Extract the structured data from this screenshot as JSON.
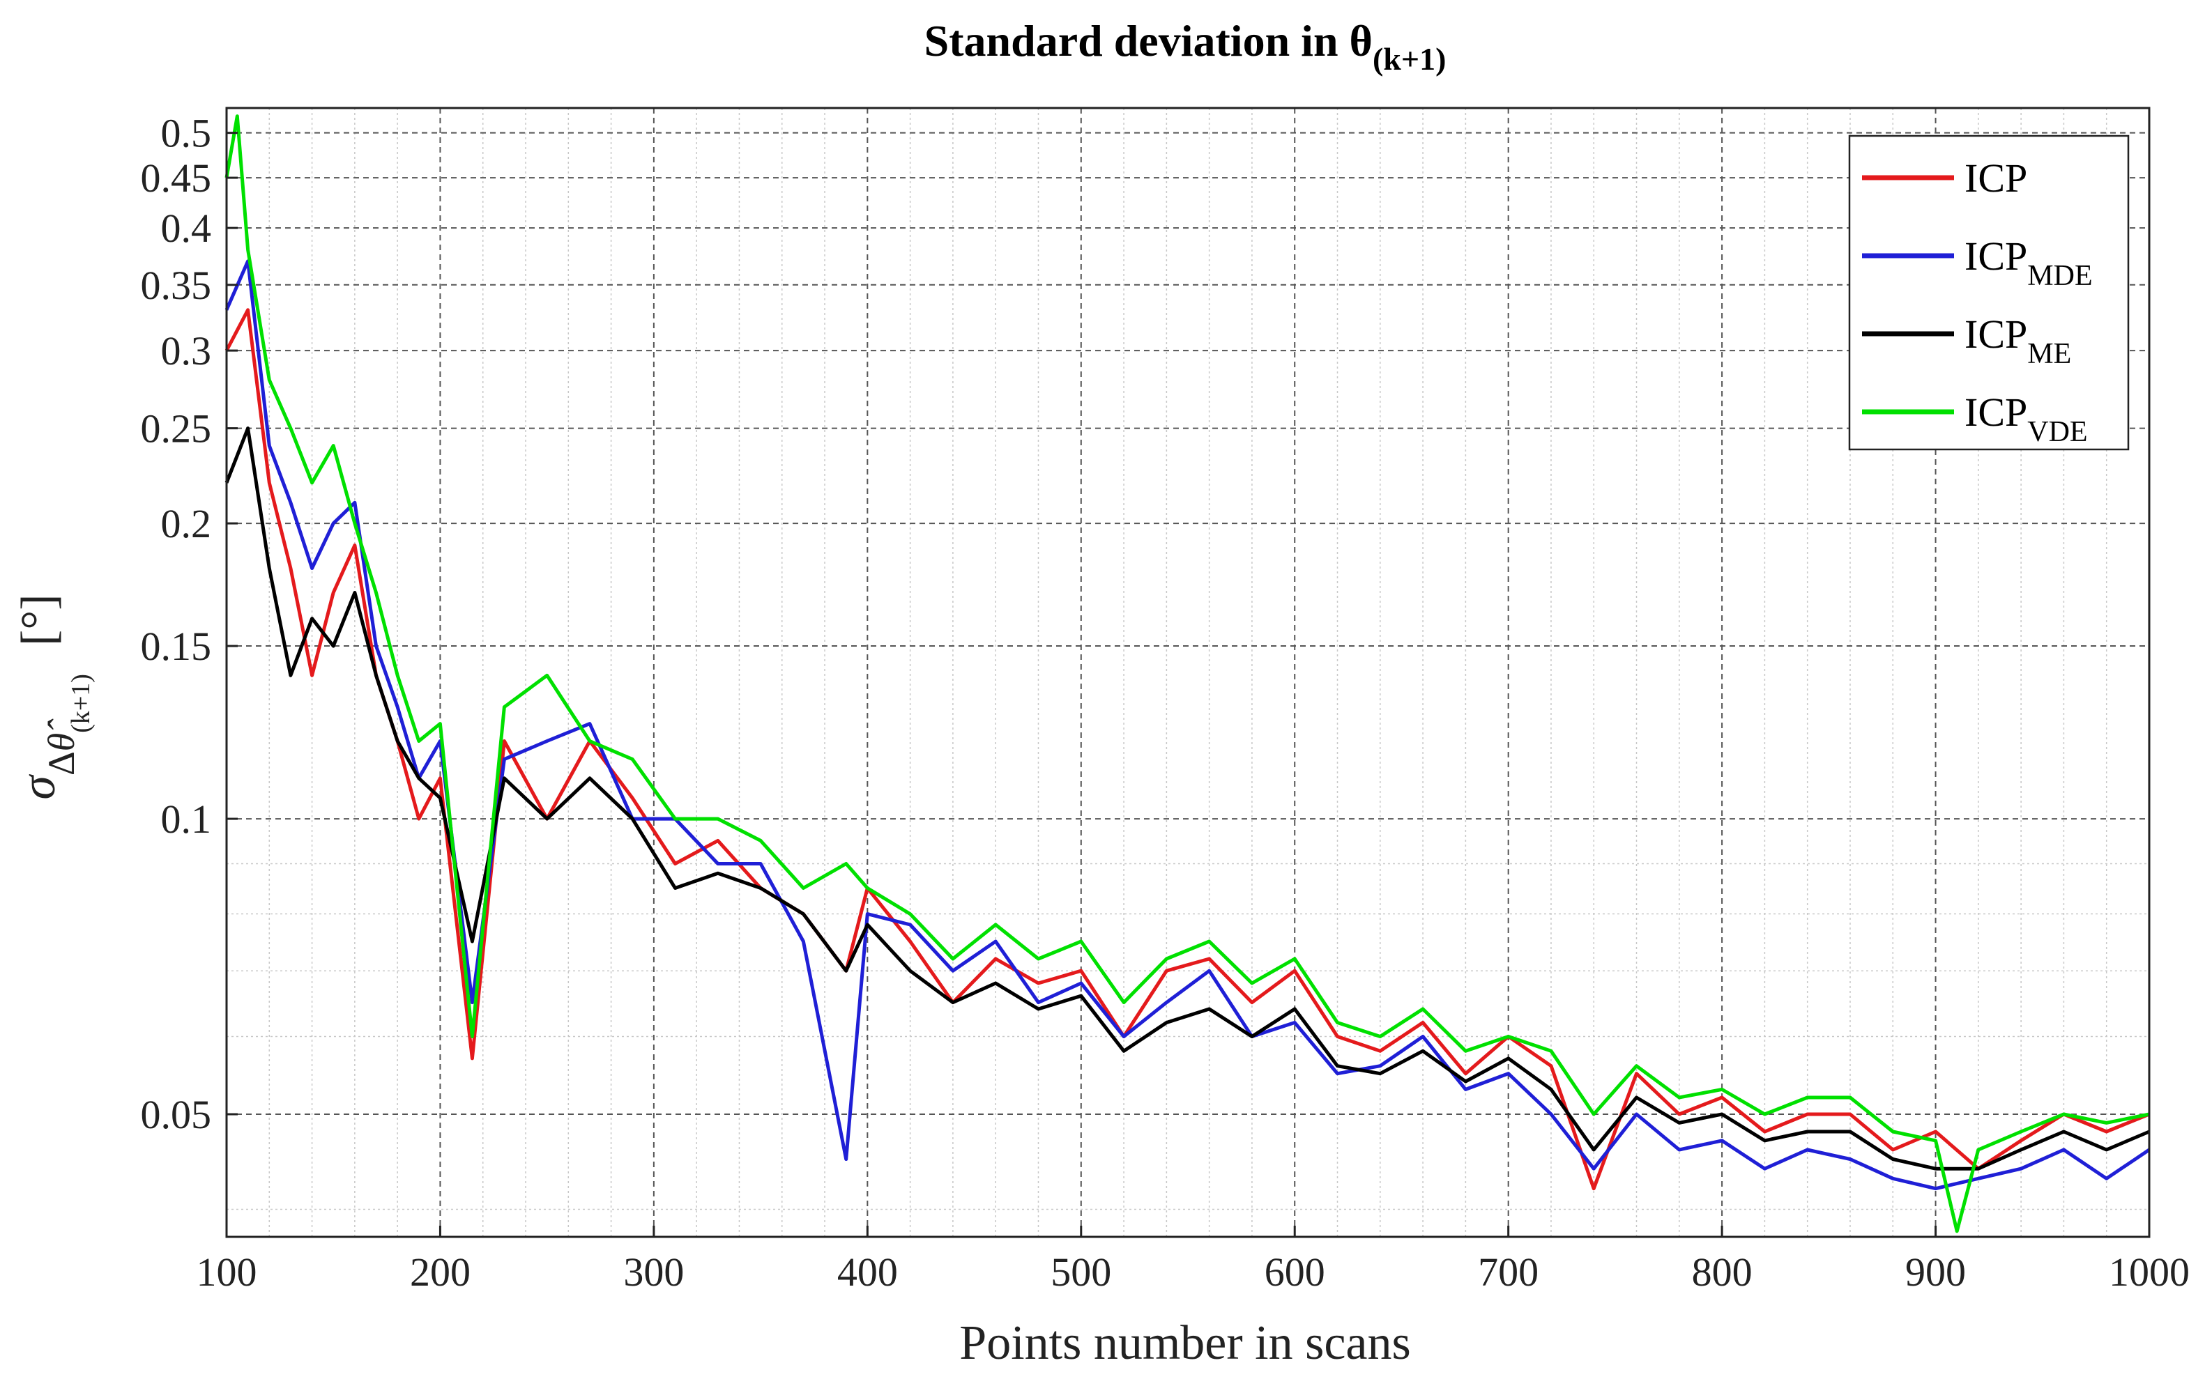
{
  "chart_data": {
    "type": "line",
    "title": "Standard deviation in θ",
    "title_subscript": "(k+1)",
    "xlabel": "Points number in scans",
    "ylabel_symbol": "σ",
    "ylabel_sub_delta": "Δ",
    "ylabel_sub_theta": "θ̂",
    "ylabel_sub_index": "(k+1)",
    "ylabel_unit": "[°]",
    "x_scale": "linear",
    "y_scale": "log",
    "xlim": [
      100,
      1000
    ],
    "ylim": [
      0.0375,
      0.53
    ],
    "xticks": [
      100,
      200,
      300,
      400,
      500,
      600,
      700,
      800,
      900,
      1000
    ],
    "xtick_labels": [
      "100",
      "200",
      "300",
      "400",
      "500",
      "600",
      "700",
      "800",
      "900",
      "1000"
    ],
    "yticks": [
      0.05,
      0.1,
      0.15,
      0.2,
      0.25,
      0.3,
      0.35,
      0.4,
      0.45,
      0.5
    ],
    "ytick_labels": [
      "0.05",
      "0.1",
      "0.15",
      "0.2",
      "0.25",
      "0.3",
      "0.35",
      "0.4",
      "0.45",
      "0.5"
    ],
    "grid": true,
    "minor_grid": true,
    "legend_position": "top-right",
    "series": [
      {
        "name": "ICP",
        "name_sub": "",
        "color": "#e41a1c",
        "x": [
          100,
          110,
          120,
          130,
          140,
          150,
          160,
          170,
          180,
          190,
          200,
          215,
          230,
          250,
          270,
          290,
          310,
          330,
          350,
          370,
          390,
          400,
          420,
          440,
          460,
          480,
          500,
          520,
          540,
          560,
          580,
          600,
          620,
          640,
          660,
          680,
          700,
          720,
          740,
          760,
          780,
          800,
          820,
          840,
          860,
          880,
          900,
          920,
          940,
          960,
          980,
          1000
        ],
        "values": [
          0.3,
          0.33,
          0.22,
          0.18,
          0.14,
          0.17,
          0.19,
          0.14,
          0.12,
          0.1,
          0.11,
          0.057,
          0.12,
          0.1,
          0.12,
          0.105,
          0.09,
          0.095,
          0.085,
          0.08,
          0.07,
          0.085,
          0.075,
          0.065,
          0.072,
          0.068,
          0.07,
          0.06,
          0.07,
          0.072,
          0.065,
          0.07,
          0.06,
          0.058,
          0.062,
          0.055,
          0.06,
          0.056,
          0.042,
          0.055,
          0.05,
          0.052,
          0.048,
          0.05,
          0.05,
          0.046,
          0.048,
          0.044,
          0.047,
          0.05,
          0.048,
          0.05
        ]
      },
      {
        "name": "ICP",
        "name_sub": "MDE",
        "color": "#1f1fd6",
        "x": [
          100,
          110,
          120,
          130,
          140,
          150,
          160,
          170,
          180,
          190,
          200,
          215,
          230,
          250,
          270,
          290,
          310,
          330,
          350,
          370,
          390,
          400,
          420,
          440,
          460,
          480,
          500,
          520,
          540,
          560,
          580,
          600,
          620,
          640,
          660,
          680,
          700,
          720,
          740,
          760,
          780,
          800,
          820,
          840,
          860,
          880,
          900,
          920,
          940,
          960,
          980,
          1000
        ],
        "values": [
          0.33,
          0.37,
          0.24,
          0.21,
          0.18,
          0.2,
          0.21,
          0.15,
          0.13,
          0.11,
          0.12,
          0.065,
          0.115,
          0.12,
          0.125,
          0.1,
          0.1,
          0.09,
          0.09,
          0.075,
          0.045,
          0.08,
          0.078,
          0.07,
          0.075,
          0.065,
          0.068,
          0.06,
          0.065,
          0.07,
          0.06,
          0.062,
          0.055,
          0.056,
          0.06,
          0.053,
          0.055,
          0.05,
          0.044,
          0.05,
          0.046,
          0.047,
          0.044,
          0.046,
          0.045,
          0.043,
          0.042,
          0.043,
          0.044,
          0.046,
          0.043,
          0.046
        ]
      },
      {
        "name": "ICP",
        "name_sub": "ME",
        "color": "#000000",
        "x": [
          100,
          110,
          120,
          130,
          140,
          150,
          160,
          170,
          180,
          190,
          200,
          215,
          230,
          250,
          270,
          290,
          310,
          330,
          350,
          370,
          390,
          400,
          420,
          440,
          460,
          480,
          500,
          520,
          540,
          560,
          580,
          600,
          620,
          640,
          660,
          680,
          700,
          720,
          740,
          760,
          780,
          800,
          820,
          840,
          860,
          880,
          900,
          920,
          940,
          960,
          980,
          1000
        ],
        "values": [
          0.22,
          0.25,
          0.18,
          0.14,
          0.16,
          0.15,
          0.17,
          0.14,
          0.12,
          0.11,
          0.105,
          0.075,
          0.11,
          0.1,
          0.11,
          0.1,
          0.085,
          0.088,
          0.085,
          0.08,
          0.07,
          0.078,
          0.07,
          0.065,
          0.068,
          0.064,
          0.066,
          0.058,
          0.062,
          0.064,
          0.06,
          0.064,
          0.056,
          0.055,
          0.058,
          0.054,
          0.057,
          0.053,
          0.046,
          0.052,
          0.049,
          0.05,
          0.047,
          0.048,
          0.048,
          0.045,
          0.044,
          0.044,
          0.046,
          0.048,
          0.046,
          0.048
        ]
      },
      {
        "name": "ICP",
        "name_sub": "VDE",
        "color": "#00e000",
        "x": [
          100,
          105,
          110,
          120,
          130,
          140,
          150,
          160,
          170,
          180,
          190,
          200,
          215,
          230,
          250,
          270,
          290,
          310,
          330,
          350,
          370,
          390,
          400,
          420,
          440,
          460,
          480,
          500,
          520,
          540,
          560,
          580,
          600,
          620,
          640,
          660,
          680,
          700,
          720,
          740,
          760,
          780,
          800,
          820,
          840,
          860,
          880,
          900,
          910,
          920,
          940,
          960,
          980,
          1000
        ],
        "values": [
          0.45,
          0.52,
          0.38,
          0.28,
          0.25,
          0.22,
          0.24,
          0.2,
          0.17,
          0.14,
          0.12,
          0.125,
          0.06,
          0.13,
          0.14,
          0.12,
          0.115,
          0.1,
          0.1,
          0.095,
          0.085,
          0.09,
          0.085,
          0.08,
          0.072,
          0.078,
          0.072,
          0.075,
          0.065,
          0.072,
          0.075,
          0.068,
          0.072,
          0.062,
          0.06,
          0.064,
          0.058,
          0.06,
          0.058,
          0.05,
          0.056,
          0.052,
          0.053,
          0.05,
          0.052,
          0.052,
          0.048,
          0.047,
          0.038,
          0.046,
          0.048,
          0.05,
          0.049,
          0.05
        ]
      }
    ]
  }
}
